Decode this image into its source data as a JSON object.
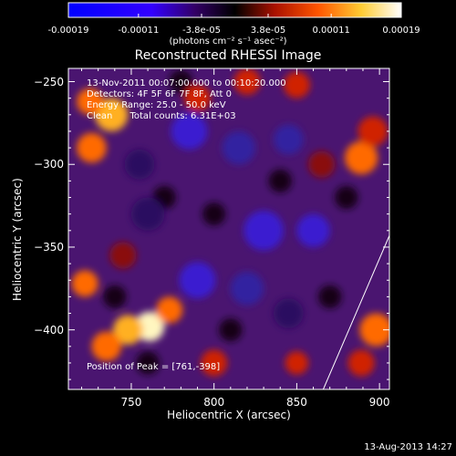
{
  "colorbar": {
    "tick_labels": [
      "-0.00019",
      "-0.00011",
      "-3.8e-05",
      "3.8e-05",
      "0.00011",
      "0.00019"
    ],
    "units": "(photons cm⁻² s⁻¹ asec⁻²)",
    "range": [
      -0.00019,
      0.00019
    ]
  },
  "chart_data": {
    "type": "heatmap",
    "title": "Reconstructed RHESSI Image",
    "xlabel": "Heliocentric X (arcsec)",
    "ylabel": "Heliocentric Y (arcsec)",
    "xlim": [
      712,
      906
    ],
    "ylim": [
      -436,
      -242
    ],
    "x_ticks": [
      750,
      800,
      850,
      900
    ],
    "y_ticks": [
      -250,
      -300,
      -350,
      -400
    ],
    "annotations": [
      "13-Nov-2011 00:07:00.000 to 00:10:20.000",
      "Detectors: 4F 5F 6F 7F 8F, Att 0",
      "Energy Range: 25.0 - 50.0 keV",
      "Clean      Total counts: 6.31E+03"
    ],
    "peak_label": "Position of Peak = [761,-398]",
    "peak": [
      761,
      -398
    ],
    "limb_line": [
      [
        866,
        -436
      ],
      [
        906,
        -343
      ]
    ],
    "blobs": [
      {
        "x": 761,
        "y": -398,
        "v": 1.0,
        "s": 9
      },
      {
        "x": 748,
        "y": -400,
        "v": 0.7,
        "s": 9
      },
      {
        "x": 773,
        "y": -388,
        "v": 0.5,
        "s": 8
      },
      {
        "x": 726,
        "y": -290,
        "v": 0.55,
        "s": 9
      },
      {
        "x": 738,
        "y": -270,
        "v": 0.6,
        "s": 10
      },
      {
        "x": 725,
        "y": -262,
        "v": 0.45,
        "s": 8
      },
      {
        "x": 889,
        "y": -296,
        "v": 0.5,
        "s": 10
      },
      {
        "x": 896,
        "y": -280,
        "v": 0.42,
        "s": 9
      },
      {
        "x": 898,
        "y": -400,
        "v": 0.45,
        "s": 10
      },
      {
        "x": 889,
        "y": -420,
        "v": 0.4,
        "s": 8
      },
      {
        "x": 722,
        "y": -372,
        "v": 0.5,
        "s": 8
      },
      {
        "x": 735,
        "y": -410,
        "v": 0.45,
        "s": 9
      },
      {
        "x": 790,
        "y": -260,
        "v": 0.3,
        "s": 8
      },
      {
        "x": 820,
        "y": -250,
        "v": 0.32,
        "s": 8
      },
      {
        "x": 850,
        "y": -252,
        "v": 0.3,
        "s": 8
      },
      {
        "x": 865,
        "y": -300,
        "v": 0.28,
        "s": 8
      },
      {
        "x": 800,
        "y": -420,
        "v": 0.35,
        "s": 8
      },
      {
        "x": 850,
        "y": -420,
        "v": 0.3,
        "s": 7
      },
      {
        "x": 745,
        "y": -355,
        "v": 0.28,
        "s": 8
      },
      {
        "x": 785,
        "y": -280,
        "v": -0.5,
        "s": 11
      },
      {
        "x": 815,
        "y": -290,
        "v": -0.45,
        "s": 10
      },
      {
        "x": 845,
        "y": -285,
        "v": -0.4,
        "s": 9
      },
      {
        "x": 830,
        "y": -340,
        "v": -0.55,
        "s": 12
      },
      {
        "x": 860,
        "y": -340,
        "v": -0.5,
        "s": 10
      },
      {
        "x": 790,
        "y": -370,
        "v": -0.5,
        "s": 11
      },
      {
        "x": 820,
        "y": -375,
        "v": -0.45,
        "s": 10
      },
      {
        "x": 845,
        "y": -390,
        "v": -0.35,
        "s": 9
      },
      {
        "x": 760,
        "y": -330,
        "v": -0.3,
        "s": 10
      },
      {
        "x": 755,
        "y": -300,
        "v": -0.35,
        "s": 9
      }
    ]
  },
  "footer": {
    "date": "13-Aug-2013 14:27"
  }
}
